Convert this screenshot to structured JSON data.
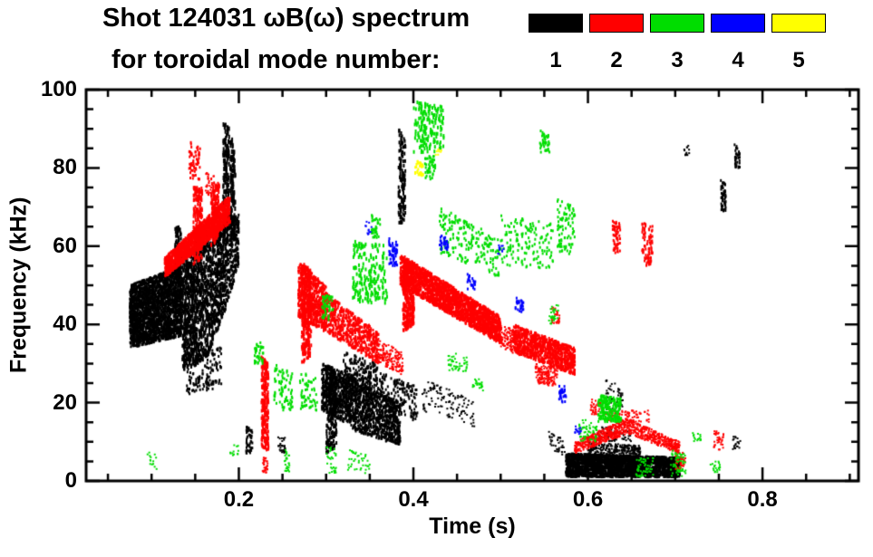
{
  "header": {
    "line1": "Shot 124031 ωB(ω) spectrum",
    "line2": "for toroidal mode number:"
  },
  "legend": {
    "position": "top-right",
    "items": [
      {
        "label": "1",
        "color": "#000000"
      },
      {
        "label": "2",
        "color": "#ff0000"
      },
      {
        "label": "3",
        "color": "#00dd00"
      },
      {
        "label": "4",
        "color": "#0000ff"
      },
      {
        "label": "5",
        "color": "#ffff00"
      }
    ]
  },
  "chart_data": {
    "type": "scatter",
    "title": "Shot 124031 ωB(ω) spectrum for toroidal mode number:",
    "xlabel": "Time (s)",
    "ylabel": "Frequency (kHz)",
    "xlim": [
      0.025,
      0.91
    ],
    "ylim": [
      0,
      100
    ],
    "xticks": [
      0.2,
      0.4,
      0.6,
      0.8
    ],
    "xtick_labels": [
      "0.2",
      "0.4",
      "0.6",
      "0.8"
    ],
    "yticks": [
      0,
      20,
      40,
      60,
      80,
      100
    ],
    "ytick_labels": [
      "0",
      "20",
      "40",
      "60",
      "80",
      "100"
    ],
    "x_minor": 0.05,
    "y_minor": 5,
    "grid": false,
    "feature_format": "[t_start, t_end, f_low_start, f_high_start, f_low_end, f_high_end, n_points, dot_w, dot_h]",
    "series": [
      {
        "name": "1",
        "color": "#000000",
        "features": [
          [
            0.075,
            0.135,
            34,
            50,
            37,
            55,
            2600,
            2,
            3
          ],
          [
            0.135,
            0.15,
            28,
            58,
            30,
            60,
            500,
            2,
            4
          ],
          [
            0.15,
            0.165,
            30,
            62,
            32,
            64,
            420,
            2,
            4
          ],
          [
            0.165,
            0.185,
            32,
            60,
            44,
            67,
            480,
            2,
            4
          ],
          [
            0.185,
            0.2,
            44,
            67,
            55,
            68,
            300,
            2,
            3
          ],
          [
            0.182,
            0.189,
            60,
            92,
            60,
            90,
            150,
            2,
            5
          ],
          [
            0.19,
            0.196,
            62,
            88,
            62,
            86,
            110,
            2,
            5
          ],
          [
            0.127,
            0.134,
            52,
            66,
            52,
            64,
            90,
            2,
            4
          ],
          [
            0.14,
            0.18,
            22,
            34,
            24,
            34,
            160,
            2,
            3
          ],
          [
            0.208,
            0.216,
            7,
            14,
            7,
            13,
            45,
            2,
            3
          ],
          [
            0.245,
            0.253,
            7,
            12,
            7,
            11,
            30,
            2,
            2
          ],
          [
            0.295,
            0.33,
            18,
            30,
            14,
            27,
            700,
            2,
            3
          ],
          [
            0.33,
            0.385,
            13,
            26,
            9,
            20,
            950,
            2,
            3
          ],
          [
            0.3,
            0.312,
            7,
            30,
            8,
            28,
            200,
            2,
            4
          ],
          [
            0.32,
            0.36,
            24,
            33,
            20,
            30,
            230,
            2,
            3
          ],
          [
            0.36,
            0.405,
            19,
            28,
            15,
            24,
            170,
            2,
            3
          ],
          [
            0.41,
            0.47,
            18,
            26,
            13,
            21,
            120,
            2,
            2
          ],
          [
            0.383,
            0.391,
            66,
            90,
            66,
            88,
            130,
            2,
            4
          ],
          [
            0.575,
            0.705,
            1,
            7,
            1,
            6,
            1700,
            3,
            3
          ],
          [
            0.6,
            0.66,
            6,
            10,
            6,
            9,
            300,
            2,
            2
          ],
          [
            0.61,
            0.65,
            10,
            14,
            10,
            13,
            70,
            2,
            2
          ],
          [
            0.62,
            0.64,
            18,
            26,
            18,
            24,
            55,
            2,
            2
          ],
          [
            0.555,
            0.575,
            8,
            13,
            6,
            10,
            40,
            2,
            2
          ],
          [
            0.752,
            0.758,
            69,
            77,
            69,
            76,
            55,
            2,
            3
          ],
          [
            0.768,
            0.774,
            80,
            86,
            80,
            85,
            35,
            2,
            3
          ],
          [
            0.71,
            0.716,
            83,
            86,
            83,
            86,
            14,
            2,
            2
          ],
          [
            0.765,
            0.775,
            8,
            12,
            8,
            11,
            20,
            2,
            2
          ]
        ]
      },
      {
        "name": "2",
        "color": "#ff0000",
        "features": [
          [
            0.115,
            0.19,
            52,
            57,
            66,
            73,
            1500,
            2,
            3
          ],
          [
            0.148,
            0.158,
            55,
            75,
            57,
            75,
            200,
            2,
            4
          ],
          [
            0.168,
            0.178,
            60,
            76,
            62,
            76,
            140,
            2,
            4
          ],
          [
            0.143,
            0.156,
            77,
            87,
            77,
            85,
            60,
            2,
            3
          ],
          [
            0.162,
            0.172,
            73,
            79,
            73,
            78,
            35,
            2,
            2
          ],
          [
            0.226,
            0.234,
            8,
            32,
            8,
            30,
            220,
            2,
            4
          ],
          [
            0.227,
            0.233,
            2,
            6,
            2,
            6,
            30,
            2,
            2
          ],
          [
            0.268,
            0.3,
            42,
            56,
            38,
            50,
            650,
            2,
            3
          ],
          [
            0.272,
            0.283,
            30,
            56,
            32,
            54,
            280,
            2,
            4
          ],
          [
            0.3,
            0.36,
            38,
            48,
            30,
            38,
            600,
            2,
            3
          ],
          [
            0.36,
            0.388,
            30,
            36,
            27,
            33,
            150,
            2,
            2
          ],
          [
            0.385,
            0.5,
            50,
            58,
            35,
            42,
            2300,
            2,
            3
          ],
          [
            0.388,
            0.401,
            38,
            56,
            40,
            56,
            320,
            2,
            4
          ],
          [
            0.5,
            0.522,
            34,
            40,
            32,
            38,
            140,
            2,
            2
          ],
          [
            0.515,
            0.585,
            33,
            40,
            27,
            34,
            950,
            2,
            3
          ],
          [
            0.54,
            0.565,
            25,
            30,
            24,
            29,
            150,
            2,
            2
          ],
          [
            0.585,
            0.645,
            7,
            10,
            12,
            16,
            420,
            2,
            2
          ],
          [
            0.645,
            0.705,
            12,
            16,
            7,
            10,
            380,
            2,
            2
          ],
          [
            0.62,
            0.67,
            15,
            18,
            15,
            18,
            80,
            2,
            2
          ],
          [
            0.628,
            0.637,
            58,
            67,
            58,
            66,
            60,
            2,
            3
          ],
          [
            0.662,
            0.675,
            55,
            66,
            55,
            65,
            85,
            2,
            3
          ],
          [
            0.7,
            0.712,
            3,
            8,
            3,
            7,
            45,
            2,
            2
          ],
          [
            0.744,
            0.756,
            8,
            13,
            8,
            12,
            35,
            2,
            2
          ],
          [
            0.603,
            0.615,
            17,
            21,
            16,
            20,
            40,
            2,
            2
          ],
          [
            0.558,
            0.568,
            40,
            45,
            40,
            44,
            25,
            2,
            2
          ]
        ]
      },
      {
        "name": "3",
        "color": "#00dd00",
        "features": [
          [
            0.218,
            0.228,
            30,
            36,
            30,
            35,
            40,
            2,
            3
          ],
          [
            0.24,
            0.262,
            18,
            30,
            18,
            28,
            80,
            2,
            3
          ],
          [
            0.252,
            0.258,
            2,
            8,
            2,
            8,
            25,
            2,
            2
          ],
          [
            0.27,
            0.29,
            18,
            28,
            18,
            26,
            60,
            2,
            3
          ],
          [
            0.295,
            0.308,
            41,
            48,
            41,
            47,
            45,
            2,
            3
          ],
          [
            0.3,
            0.312,
            2,
            9,
            2,
            8,
            30,
            2,
            2
          ],
          [
            0.325,
            0.35,
            2,
            8,
            2,
            7,
            40,
            2,
            2
          ],
          [
            0.33,
            0.37,
            46,
            62,
            45,
            60,
            190,
            2,
            4
          ],
          [
            0.352,
            0.362,
            62,
            68,
            62,
            67,
            35,
            2,
            3
          ],
          [
            0.4,
            0.435,
            84,
            97,
            84,
            96,
            170,
            2,
            4
          ],
          [
            0.413,
            0.425,
            77,
            84,
            77,
            83,
            45,
            2,
            3
          ],
          [
            0.43,
            0.5,
            58,
            70,
            52,
            62,
            210,
            2,
            3
          ],
          [
            0.44,
            0.462,
            28,
            33,
            28,
            32,
            45,
            2,
            2
          ],
          [
            0.468,
            0.48,
            23,
            27,
            23,
            26,
            22,
            2,
            2
          ],
          [
            0.5,
            0.56,
            55,
            68,
            54,
            66,
            150,
            2,
            3
          ],
          [
            0.545,
            0.556,
            84,
            90,
            84,
            89,
            40,
            2,
            3
          ],
          [
            0.565,
            0.585,
            58,
            72,
            58,
            70,
            90,
            2,
            3
          ],
          [
            0.555,
            0.566,
            40,
            46,
            40,
            45,
            30,
            2,
            2
          ],
          [
            0.612,
            0.638,
            15,
            22,
            15,
            21,
            230,
            2,
            3
          ],
          [
            0.59,
            0.61,
            10,
            16,
            10,
            15,
            55,
            2,
            2
          ],
          [
            0.655,
            0.675,
            1,
            6,
            1,
            6,
            55,
            2,
            2
          ],
          [
            0.695,
            0.712,
            1,
            8,
            1,
            7,
            60,
            2,
            2
          ],
          [
            0.74,
            0.752,
            2,
            5,
            2,
            5,
            20,
            2,
            2
          ],
          [
            0.72,
            0.73,
            10,
            13,
            10,
            12,
            15,
            2,
            2
          ],
          [
            0.095,
            0.106,
            3,
            8,
            3,
            7,
            14,
            2,
            2
          ],
          [
            0.19,
            0.2,
            6,
            10,
            6,
            9,
            12,
            2,
            2
          ]
        ]
      },
      {
        "name": "4",
        "color": "#0000ff",
        "features": [
          [
            0.372,
            0.382,
            55,
            62,
            55,
            61,
            55,
            2,
            3
          ],
          [
            0.43,
            0.44,
            59,
            63,
            59,
            62,
            25,
            2,
            3
          ],
          [
            0.462,
            0.471,
            49,
            53,
            49,
            52,
            25,
            2,
            3
          ],
          [
            0.517,
            0.526,
            43,
            47,
            43,
            46,
            25,
            2,
            3
          ],
          [
            0.497,
            0.504,
            58,
            61,
            58,
            60,
            12,
            2,
            2
          ],
          [
            0.567,
            0.575,
            20,
            25,
            20,
            24,
            30,
            2,
            3
          ],
          [
            0.585,
            0.592,
            12,
            15,
            12,
            14,
            15,
            2,
            2
          ],
          [
            0.345,
            0.352,
            63,
            67,
            63,
            66,
            12,
            2,
            2
          ]
        ]
      },
      {
        "name": "5",
        "color": "#ffff00",
        "features": [
          [
            0.402,
            0.411,
            78,
            82,
            78,
            81,
            35,
            2,
            3
          ],
          [
            0.425,
            0.432,
            83,
            85,
            83,
            85,
            8,
            2,
            2
          ]
        ]
      }
    ]
  }
}
